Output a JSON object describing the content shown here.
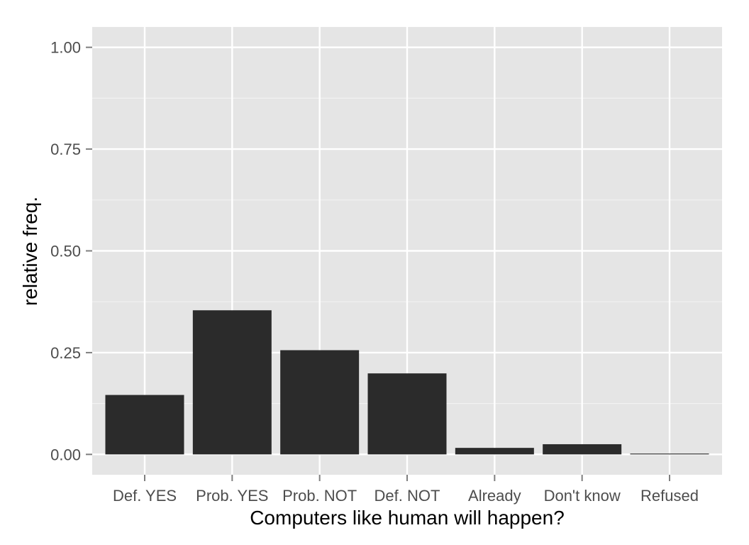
{
  "chart_data": {
    "type": "bar",
    "title": "",
    "xlabel": "Computers like human will happen?",
    "ylabel": "relative freq.",
    "categories": [
      "Def. YES",
      "Prob. YES",
      "Prob. NOT",
      "Def. NOT",
      "Already",
      "Don't know",
      "Refused"
    ],
    "values": [
      0.146,
      0.354,
      0.256,
      0.199,
      0.016,
      0.025,
      0.002
    ],
    "ylim": [
      -0.05,
      1.05
    ],
    "yticks": [
      "0.00",
      "0.25",
      "0.50",
      "0.75",
      "1.00"
    ],
    "grid": true,
    "legend": "none",
    "colors": {
      "panel": "#e5e5e5",
      "grid_major": "#ffffff",
      "grid_minor": "#f2f2f2",
      "bar": "#2b2b2b",
      "tick": "#7f7f7f"
    }
  }
}
